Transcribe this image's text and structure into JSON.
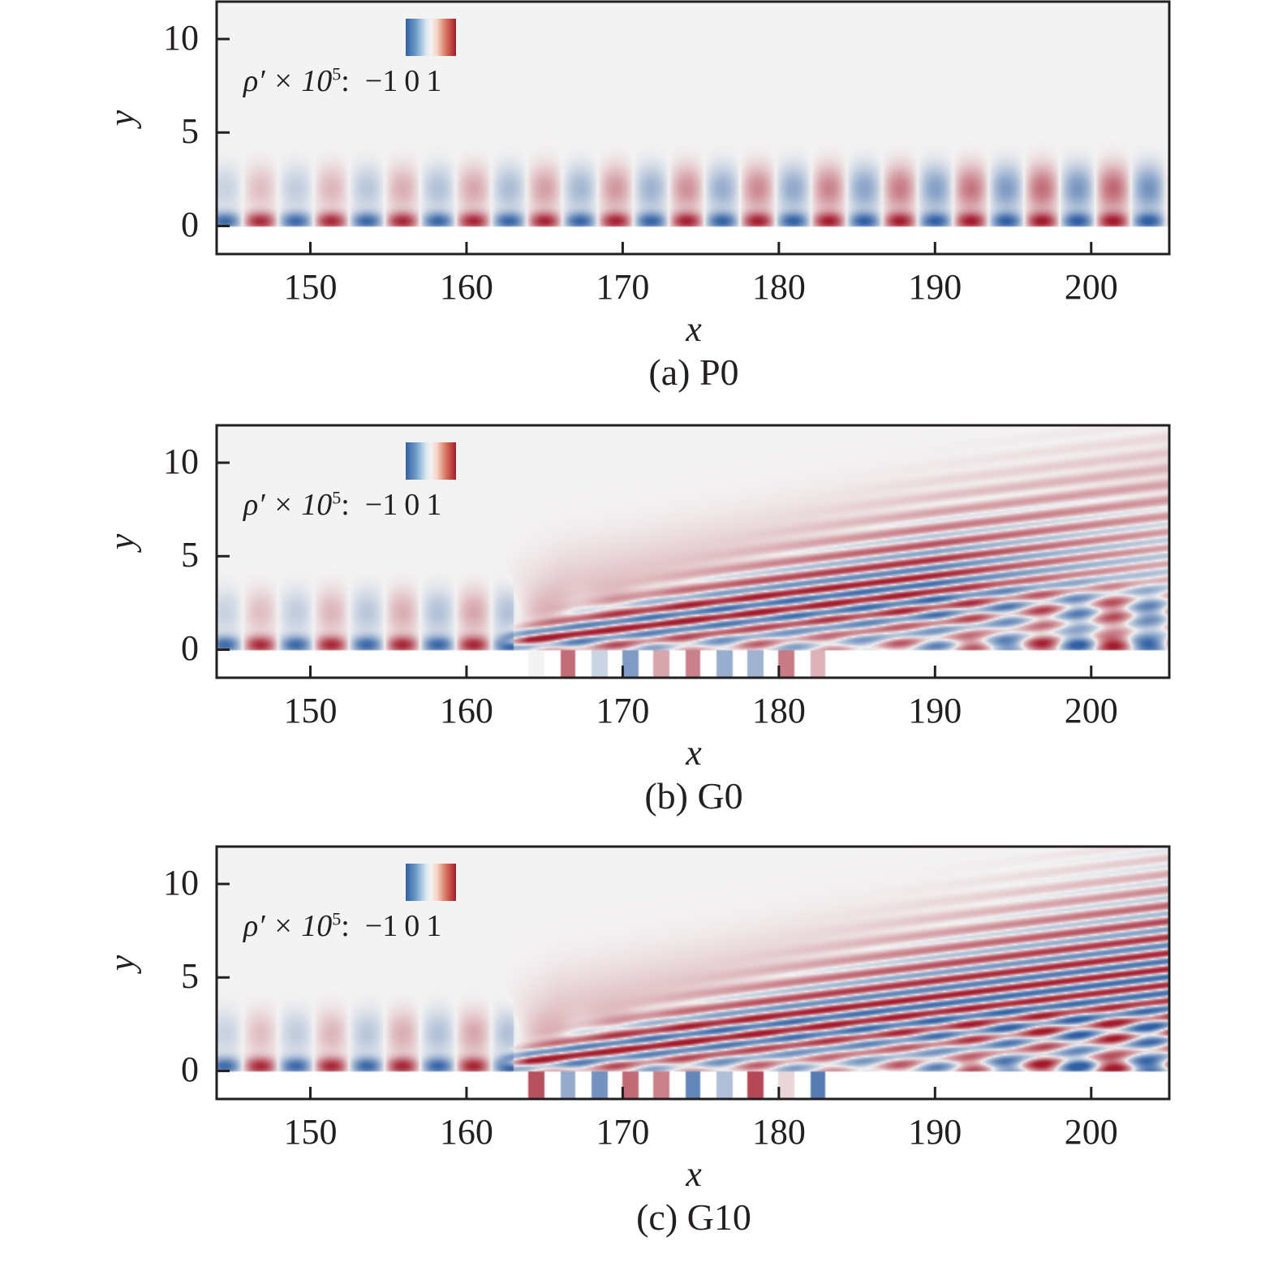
{
  "chart_data": [
    {
      "type": "heatmap",
      "caption": "(a) P0",
      "case": "P0",
      "xlabel": "x",
      "ylabel": "y",
      "xlim": [
        144,
        205
      ],
      "ylim": [
        -1.5,
        12
      ],
      "xticks": [
        "150",
        "160",
        "170",
        "180",
        "190",
        "200"
      ],
      "yticks": [
        "0",
        "5",
        "10"
      ],
      "colorbar": {
        "quantity": "ρ′ × 10",
        "exponent": "5",
        "colon": ":",
        "ticks": [
          "−1",
          "0",
          "1"
        ],
        "range": [
          -1,
          1
        ],
        "colormap": "RdBu_r"
      },
      "wall": "plain",
      "grooves": []
    },
    {
      "type": "heatmap",
      "caption": "(b) G0",
      "case": "G0",
      "xlabel": "x",
      "ylabel": "y",
      "xlim": [
        144,
        205
      ],
      "ylim": [
        -1.5,
        12
      ],
      "xticks": [
        "150",
        "160",
        "170",
        "180",
        "190",
        "200"
      ],
      "yticks": [
        "0",
        "5",
        "10"
      ],
      "colorbar": {
        "quantity": "ρ′ × 10",
        "exponent": "5",
        "colon": ":",
        "ticks": [
          "−1",
          "0",
          "1"
        ],
        "range": [
          -1,
          1
        ],
        "colormap": "RdBu_r"
      },
      "wall": "grooved",
      "grooves": [
        164,
        166,
        168,
        170,
        172,
        174,
        176,
        178,
        180,
        182
      ]
    },
    {
      "type": "heatmap",
      "caption": "(c) G10",
      "case": "G10",
      "xlabel": "x",
      "ylabel": "y",
      "xlim": [
        144,
        205
      ],
      "ylim": [
        -1.5,
        12
      ],
      "xticks": [
        "150",
        "160",
        "170",
        "180",
        "190",
        "200"
      ],
      "yticks": [
        "0",
        "5",
        "10"
      ],
      "colorbar": {
        "quantity": "ρ′ × 10",
        "exponent": "5",
        "colon": ":",
        "ticks": [
          "−1",
          "0",
          "1"
        ],
        "range": [
          -1,
          1
        ],
        "colormap": "RdBu_r"
      },
      "wall": "grooved",
      "grooves": [
        164,
        166,
        168,
        170,
        172,
        174,
        176,
        178,
        180,
        182
      ]
    }
  ],
  "colors": {
    "negative": "#3060a4",
    "zero": "#f4f3f3",
    "positive": "#a31b2d",
    "axis": "#231f20"
  }
}
